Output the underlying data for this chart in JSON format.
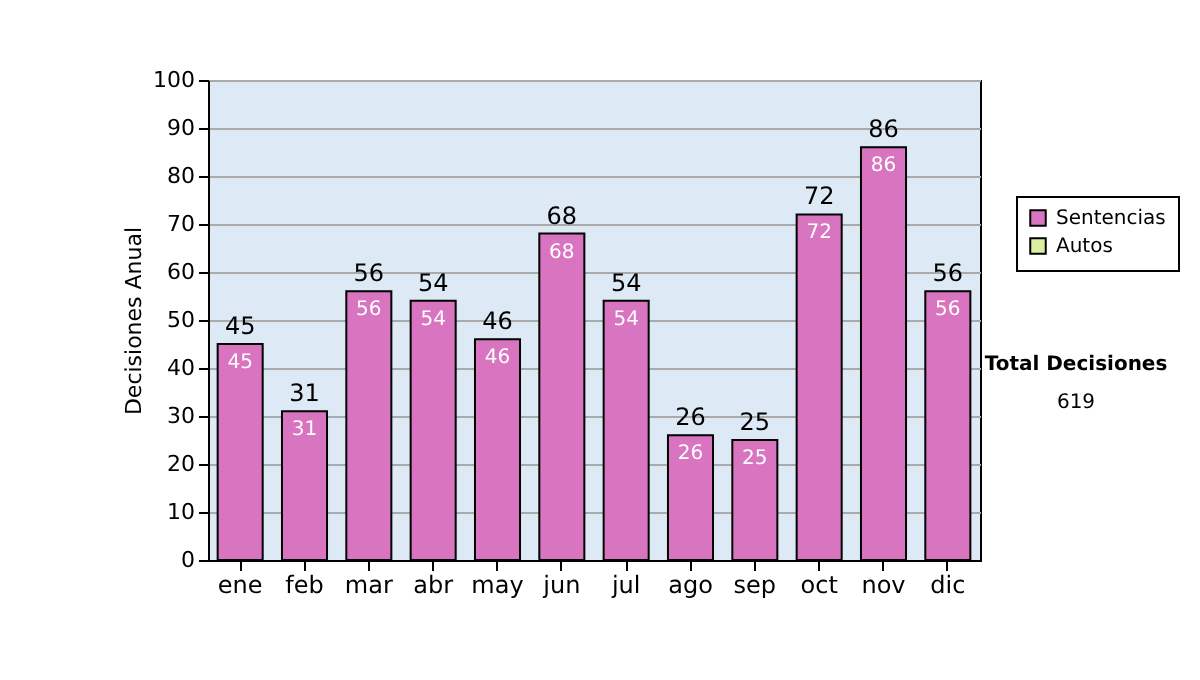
{
  "chart_data": {
    "type": "bar",
    "stacked": true,
    "ylabel": "Decisiones Anual",
    "categories": [
      "ene",
      "feb",
      "mar",
      "abr",
      "may",
      "jun",
      "jul",
      "ago",
      "sep",
      "oct",
      "nov",
      "dic"
    ],
    "series": [
      {
        "name": "Sentencias",
        "color": "#d874c0",
        "values": [
          45,
          31,
          56,
          54,
          46,
          68,
          54,
          26,
          25,
          72,
          86,
          56
        ],
        "value_labels": [
          "45",
          "31",
          "56",
          "54",
          "46",
          "68",
          "54",
          "26",
          "25",
          "72",
          "86",
          "56"
        ]
      },
      {
        "name": "Autos",
        "color": "#dcefa0",
        "values": [
          0,
          0,
          0,
          0,
          0,
          0,
          0,
          0,
          0,
          0,
          0,
          0
        ],
        "value_labels": [
          null,
          null,
          null,
          null,
          null,
          null,
          null,
          null,
          null,
          null,
          null,
          null
        ]
      }
    ],
    "totals": [
      "45",
      "31",
      "56",
      "54",
      "46",
      "68",
      "54",
      "26",
      "25",
      "72",
      "86",
      "56"
    ],
    "ylim": [
      0,
      100
    ],
    "yticks": [
      0,
      10,
      20,
      30,
      40,
      50,
      60,
      70,
      80,
      90,
      100
    ],
    "grid": "y",
    "legend": "right",
    "annotations": [
      "Total Decisiones",
      "619"
    ]
  }
}
